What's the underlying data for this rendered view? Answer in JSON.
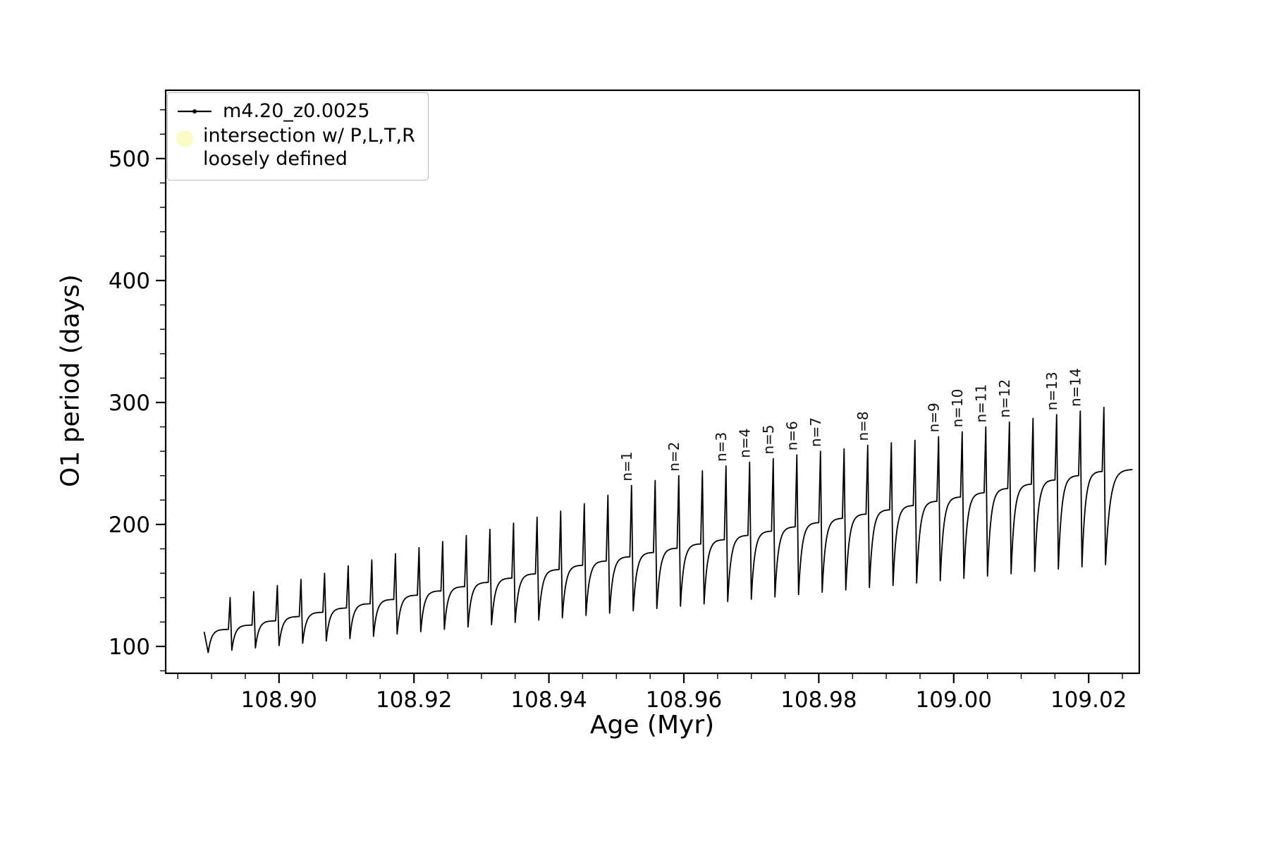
{
  "chart_data": {
    "type": "line",
    "title": "",
    "xlabel": "Age (Myr)",
    "ylabel": "O1 period (days)",
    "xlim": [
      108.8832,
      109.0275
    ],
    "ylim": [
      78,
      556
    ],
    "x_major_ticks": [
      108.9,
      108.92,
      108.94,
      108.96,
      108.98,
      109.0,
      109.02
    ],
    "x_tick_labels": [
      "108.90",
      "108.92",
      "108.94",
      "108.96",
      "108.98",
      "109.00",
      "109.02"
    ],
    "x_minor_step": 0.005,
    "y_major_ticks": [
      100,
      200,
      300,
      400,
      500
    ],
    "y_tick_labels": [
      "100",
      "200",
      "300",
      "400",
      "500"
    ],
    "y_minor_step": 20,
    "grid": false,
    "legend_position": "upper left",
    "series": [
      {
        "name": "m4.20_z0.0025",
        "color": "#000000",
        "marker": "point",
        "cycle_period_myr": 0.0035,
        "cycle_fields": [
          "start_age",
          "min_period",
          "plateau_period",
          "spike_period"
        ],
        "cycles": [
          [
            108.8895,
            95.0,
            114.0,
            140
          ],
          [
            108.893,
            96.9,
            117.5,
            145
          ],
          [
            108.8965,
            98.8,
            121.0,
            150
          ],
          [
            108.9,
            100.7,
            124.5,
            155
          ],
          [
            108.9035,
            102.6,
            128.0,
            160
          ],
          [
            108.907,
            104.5,
            131.5,
            166
          ],
          [
            108.9105,
            106.4,
            135.0,
            171
          ],
          [
            108.914,
            108.3,
            138.5,
            176
          ],
          [
            108.9175,
            110.2,
            142.0,
            181
          ],
          [
            108.921,
            112.1,
            145.5,
            186
          ],
          [
            108.9245,
            114.0,
            149.0,
            191
          ],
          [
            108.928,
            115.9,
            152.5,
            196
          ],
          [
            108.9315,
            117.8,
            156.0,
            201
          ],
          [
            108.935,
            119.7,
            159.5,
            206
          ],
          [
            108.9385,
            121.6,
            163.0,
            211
          ],
          [
            108.942,
            123.5,
            166.5,
            217
          ],
          [
            108.9455,
            125.4,
            170.0,
            224
          ],
          [
            108.949,
            127.3,
            173.5,
            232
          ],
          [
            108.9525,
            129.2,
            177.0,
            236
          ],
          [
            108.956,
            131.1,
            180.5,
            240
          ],
          [
            108.9595,
            133.0,
            184.0,
            244
          ],
          [
            108.963,
            134.9,
            187.5,
            248
          ],
          [
            108.9665,
            136.8,
            191.0,
            251
          ],
          [
            108.97,
            138.7,
            194.5,
            254
          ],
          [
            108.9735,
            140.6,
            198.0,
            257
          ],
          [
            108.977,
            142.5,
            201.5,
            260
          ],
          [
            108.9805,
            144.4,
            205.0,
            262
          ],
          [
            108.984,
            146.3,
            208.5,
            265
          ],
          [
            108.9875,
            148.2,
            212.0,
            267
          ],
          [
            108.991,
            150.1,
            215.5,
            269
          ],
          [
            108.9945,
            152.0,
            219.0,
            272
          ],
          [
            108.998,
            153.9,
            222.5,
            276
          ],
          [
            109.0015,
            155.8,
            226.0,
            280
          ],
          [
            109.005,
            157.7,
            229.5,
            284
          ],
          [
            109.0085,
            159.6,
            233.0,
            287
          ],
          [
            109.012,
            161.5,
            236.5,
            290
          ],
          [
            109.0155,
            163.4,
            240.0,
            293
          ],
          [
            109.019,
            165.3,
            243.5,
            296
          ],
          [
            109.0225,
            167.0,
            245.0,
            null
          ]
        ]
      }
    ],
    "annotations": [
      {
        "label": "n=1",
        "cycle": 17
      },
      {
        "label": "n=2",
        "cycle": 19
      },
      {
        "label": "n=3",
        "cycle": 21
      },
      {
        "label": "n=4",
        "cycle": 22
      },
      {
        "label": "n=5",
        "cycle": 23
      },
      {
        "label": "n=6",
        "cycle": 24
      },
      {
        "label": "n=7",
        "cycle": 25
      },
      {
        "label": "n=8",
        "cycle": 27
      },
      {
        "label": "n=9",
        "cycle": 30
      },
      {
        "label": "n=10",
        "cycle": 31
      },
      {
        "label": "n=11",
        "cycle": 32
      },
      {
        "label": "n=12",
        "cycle": 33
      },
      {
        "label": "n=13",
        "cycle": 35
      },
      {
        "label": "n=14",
        "cycle": 36
      }
    ],
    "legend": {
      "series_label": "m4.20_z0.0025",
      "intersection_label": "intersection w/ P,L,T,R\nloosely defined",
      "intersection_marker_color": "#fbfbc6",
      "line_color": "#000000"
    }
  }
}
